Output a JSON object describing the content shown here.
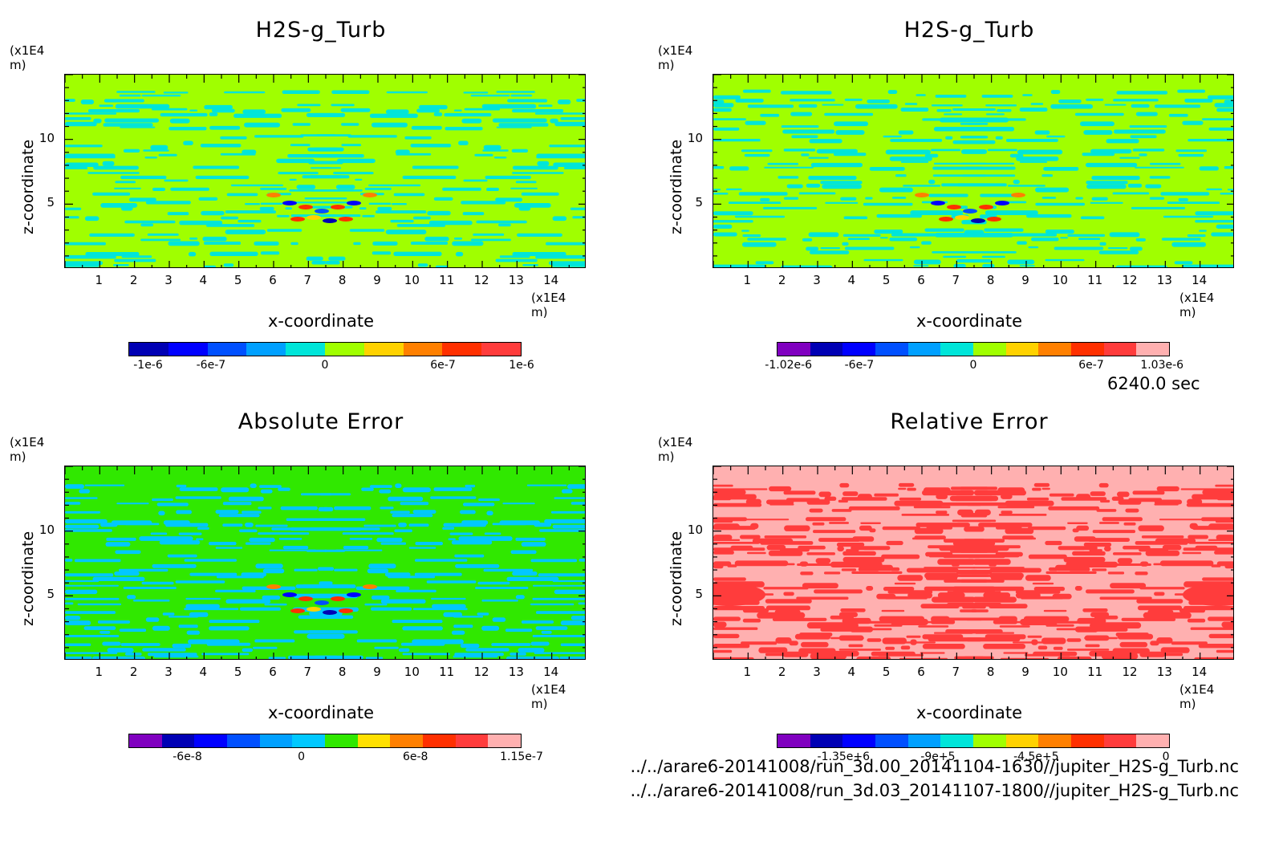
{
  "time_label": "6240.0 sec",
  "files": [
    "../../arare6-20141008/run_3d.00_20141104-1630//jupiter_H2S-g_Turb.nc",
    "../../arare6-20141008/run_3d.03_20141107-1800//jupiter_H2S-g_Turb.nc"
  ],
  "chart_data": [
    {
      "type": "heatmap",
      "title": "H2S-g_Turb",
      "xlabel": "x-coordinate",
      "ylabel": "z-coordinate",
      "x_unit": "(x1E4 m)",
      "y_unit": "(x1E4 m)",
      "xlim": [
        0,
        15
      ],
      "ylim": [
        0,
        15
      ],
      "x_ticks": [
        1,
        2,
        3,
        4,
        5,
        6,
        7,
        8,
        9,
        10,
        11,
        12,
        13,
        14
      ],
      "y_ticks": [
        5,
        10
      ],
      "background": "#a0ff00",
      "pattern": "#00e5d9",
      "colorbar": {
        "colors": [
          "#0000b4",
          "#0000ff",
          "#0050ff",
          "#00a0ff",
          "#00e5d9",
          "#a0ff00",
          "#ffd200",
          "#ff8000",
          "#ff3000",
          "#ff3c3c"
        ],
        "labels": [
          "-1e-6",
          "-6e-7",
          "0",
          "6e-7",
          "1e-6"
        ],
        "positions": [
          0.05,
          0.21,
          0.5,
          0.8,
          1.0
        ]
      }
    },
    {
      "type": "heatmap",
      "title": "H2S-g_Turb",
      "xlabel": "x-coordinate",
      "ylabel": "z-coordinate",
      "x_unit": "(x1E4 m)",
      "y_unit": "(x1E4 m)",
      "xlim": [
        0,
        15
      ],
      "ylim": [
        0,
        15
      ],
      "x_ticks": [
        1,
        2,
        3,
        4,
        5,
        6,
        7,
        8,
        9,
        10,
        11,
        12,
        13,
        14
      ],
      "y_ticks": [
        5,
        10
      ],
      "background": "#a0ff00",
      "pattern": "#00e5d9",
      "colorbar": {
        "colors": [
          "#8000c0",
          "#0000b4",
          "#0000ff",
          "#0050ff",
          "#00a0ff",
          "#00e5d9",
          "#a0ff00",
          "#ffd200",
          "#ff8000",
          "#ff3000",
          "#ff3c3c",
          "#ffb0b0"
        ],
        "labels": [
          "-1.02e-6",
          "-6e-7",
          "0",
          "6e-7",
          "1.03e-6"
        ],
        "positions": [
          0.03,
          0.21,
          0.5,
          0.8,
          0.98
        ]
      }
    },
    {
      "type": "heatmap",
      "title": "Absolute Error",
      "xlabel": "x-coordinate",
      "ylabel": "z-coordinate",
      "x_unit": "(x1E4 m)",
      "y_unit": "(x1E4 m)",
      "xlim": [
        0,
        15
      ],
      "ylim": [
        0,
        15
      ],
      "x_ticks": [
        1,
        2,
        3,
        4,
        5,
        6,
        7,
        8,
        9,
        10,
        11,
        12,
        13,
        14
      ],
      "y_ticks": [
        5,
        10
      ],
      "background": "#30e800",
      "pattern": "#00c8ff",
      "colorbar": {
        "colors": [
          "#8000c0",
          "#0000b4",
          "#0000ff",
          "#0050ff",
          "#00a0ff",
          "#00c8ff",
          "#30e800",
          "#ffe000",
          "#ff8000",
          "#ff3000",
          "#ff3c3c",
          "#ffb0b0"
        ],
        "labels": [
          "-6e-8",
          "0",
          "6e-8",
          "1.15e-7"
        ],
        "positions": [
          0.15,
          0.44,
          0.73,
          1.0
        ]
      }
    },
    {
      "type": "heatmap",
      "title": "Relative Error",
      "xlabel": "x-coordinate",
      "ylabel": "z-coordinate",
      "x_unit": "(x1E4 m)",
      "y_unit": "(x1E4 m)",
      "xlim": [
        0,
        15
      ],
      "ylim": [
        0,
        15
      ],
      "x_ticks": [
        1,
        2,
        3,
        4,
        5,
        6,
        7,
        8,
        9,
        10,
        11,
        12,
        13,
        14
      ],
      "y_ticks": [
        5,
        10
      ],
      "background": "#ffb0b0",
      "pattern": "#ff3c3c",
      "colorbar": {
        "colors": [
          "#8000c0",
          "#0000b4",
          "#0000ff",
          "#0050ff",
          "#00a0ff",
          "#00e5d9",
          "#a0ff00",
          "#ffd200",
          "#ff8000",
          "#ff3000",
          "#ff3c3c",
          "#ffb0b0"
        ],
        "labels": [
          "-1.35e+6",
          "-9e+5",
          "-4.5e+5",
          "0"
        ],
        "positions": [
          0.17,
          0.41,
          0.66,
          0.99
        ]
      }
    }
  ]
}
